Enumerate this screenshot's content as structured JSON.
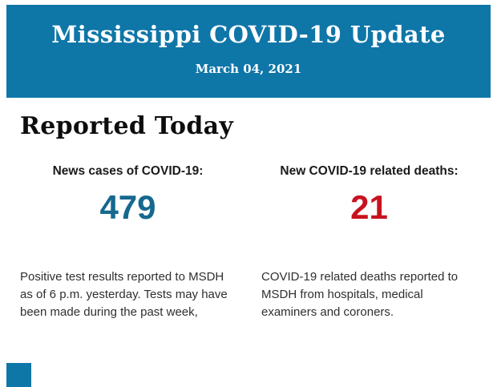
{
  "header": {
    "title": "Mississippi COVID-19 Update",
    "date": "March 04, 2021",
    "background_color": "#0F76A8",
    "text_color": "#FFFFFF"
  },
  "main": {
    "section_title": "Reported Today",
    "stats": [
      {
        "label": "News cases of COVID-19:",
        "value": "479",
        "value_color": "#16688F",
        "description": "Positive test results reported to MSDH as of 6 p.m. yesterday. Tests may have been made during the past week,"
      },
      {
        "label": "New COVID-19 related deaths:",
        "value": "21",
        "value_color": "#C8121F",
        "description": "COVID-19 related deaths reported to MSDH from hospitals, medical examiners and coroners."
      }
    ]
  },
  "footer": {
    "partial_block_color": "#0F76A8"
  }
}
